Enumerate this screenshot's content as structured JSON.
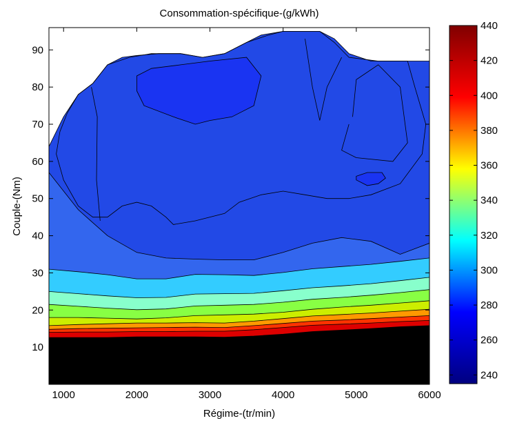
{
  "chart_data": {
    "type": "contour",
    "title": "Consommation-spécifique-(g/kWh)",
    "xlabel": "Régime-(tr/min)",
    "ylabel": "Couple-(Nm)",
    "xlim": [
      800,
      6000
    ],
    "ylim": [
      0,
      96
    ],
    "xticks": [
      1000,
      2000,
      3000,
      4000,
      5000,
      6000
    ],
    "yticks": [
      10,
      20,
      30,
      40,
      50,
      60,
      70,
      80,
      90
    ],
    "grid": false,
    "colorbar": {
      "label": "",
      "range": [
        235,
        440
      ],
      "ticks": [
        240,
        260,
        280,
        300,
        320,
        340,
        360,
        380,
        400,
        420,
        440
      ],
      "colormap": "jet",
      "colors": [
        "#000080",
        "#0000ff",
        "#00ffff",
        "#ffff00",
        "#ff0000",
        "#800000"
      ]
    },
    "contour_levels": [
      {
        "level": 440,
        "color": "#000000",
        "y": [
          12.6,
          12.6,
          12.6,
          12.8,
          12.8,
          12.8,
          12.7,
          13.0,
          13.5,
          14.2,
          14.6,
          15.0,
          15.5,
          15.8
        ]
      },
      {
        "level": 420,
        "color": "#dd0000",
        "y": [
          14.0,
          14.1,
          14.1,
          14.2,
          14.2,
          14.3,
          14.3,
          14.7,
          15.3,
          15.9,
          16.2,
          16.5,
          16.9,
          17.2
        ]
      },
      {
        "level": 400,
        "color": "#ff3300",
        "y": [
          14.8,
          15.0,
          15.1,
          15.2,
          15.3,
          15.4,
          15.3,
          15.8,
          16.4,
          17.0,
          17.3,
          17.7,
          18.1,
          18.5
        ]
      },
      {
        "level": 380,
        "color": "#ff9900",
        "y": [
          15.8,
          16.1,
          16.3,
          16.5,
          16.5,
          16.6,
          16.5,
          17.0,
          17.7,
          18.4,
          18.8,
          19.2,
          19.7,
          20.2
        ]
      },
      {
        "level": 360,
        "color": "#ccee00",
        "y": [
          18.0,
          18.0,
          17.8,
          17.6,
          17.9,
          18.5,
          18.7,
          18.9,
          19.4,
          20.2,
          20.8,
          21.3,
          21.9,
          22.5
        ]
      },
      {
        "level": 340,
        "color": "#88ff44",
        "y": [
          21.5,
          21.0,
          20.5,
          20.1,
          20.3,
          21.1,
          21.3,
          21.5,
          22.1,
          22.9,
          23.4,
          24.0,
          24.7,
          25.5
        ]
      },
      {
        "level": 320,
        "color": "#88ffcc",
        "y": [
          25.0,
          24.4,
          23.8,
          23.3,
          23.4,
          24.3,
          24.4,
          24.5,
          25.2,
          26.0,
          26.5,
          27.1,
          27.9,
          28.8
        ]
      },
      {
        "level": 300,
        "color": "#33ccff",
        "y": [
          31.0,
          30.3,
          29.5,
          28.4,
          28.4,
          29.6,
          29.5,
          29.3,
          30.1,
          31.1,
          31.7,
          32.3,
          33.1,
          34.0
        ]
      },
      {
        "level": 280,
        "color": "#3366ee",
        "y": [
          57.0,
          47.0,
          40.0,
          35.5,
          34.0,
          33.7,
          33.5,
          33.5,
          35.5,
          38.0,
          39.5,
          38.5,
          35.0,
          38.0
        ]
      }
    ],
    "regions": [
      {
        "level": 260,
        "color": "#2249e6",
        "x": [
          1000,
          1400,
          2000,
          2400,
          3000,
          3600,
          4000,
          4500,
          5000,
          5600,
          6000
        ],
        "y_lower": [
          45,
          45,
          48,
          43,
          45,
          50,
          49,
          48,
          48,
          50,
          55
        ]
      },
      {
        "level": 250,
        "color": "#1a34f2",
        "x": [
          2000,
          2500,
          3000,
          3500,
          3700
        ],
        "y_lower": [
          80,
          73,
          70,
          75,
          82
        ]
      },
      {
        "level": 250,
        "color": "#1a34f2",
        "x": [
          5000,
          5100,
          5300,
          5400
        ],
        "y_lower": [
          55,
          53,
          54,
          56
        ]
      }
    ],
    "annotations": []
  }
}
